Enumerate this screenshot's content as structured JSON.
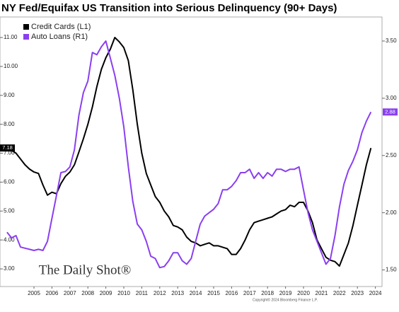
{
  "chart_data": {
    "type": "line",
    "title": "NY Fed/Equifax US Transition into Serious Delinquency (90+ Days)",
    "watermark": "The Daily Shot®",
    "copyright": "Copyright© 2024 Bloomberg Finance L.P.",
    "x": [
      2004,
      2004.25,
      2004.5,
      2004.75,
      2005,
      2005.25,
      2005.5,
      2005.75,
      2006,
      2006.25,
      2006.5,
      2006.75,
      2007,
      2007.25,
      2007.5,
      2007.75,
      2008,
      2008.25,
      2008.5,
      2008.75,
      2009,
      2009.25,
      2009.5,
      2009.75,
      2010,
      2010.25,
      2010.5,
      2010.75,
      2011,
      2011.25,
      2011.5,
      2011.75,
      2012,
      2012.25,
      2012.5,
      2012.75,
      2013,
      2013.25,
      2013.5,
      2013.75,
      2014,
      2014.25,
      2014.5,
      2014.75,
      2015,
      2015.25,
      2015.5,
      2015.75,
      2016,
      2016.25,
      2016.5,
      2016.75,
      2017,
      2017.25,
      2017.5,
      2017.75,
      2018,
      2018.25,
      2018.5,
      2018.75,
      2019,
      2019.25,
      2019.5,
      2019.75,
      2020,
      2020.25,
      2020.5,
      2020.75,
      2021,
      2021.25,
      2021.5,
      2021.75,
      2022,
      2022.25,
      2022.5,
      2022.75,
      2023,
      2023.25,
      2023.5,
      2023.75,
      2024,
      2024.25
    ],
    "xlim": [
      2003.61,
      2024.87
    ],
    "xticks": [
      {
        "value": 2005.5,
        "label": "2005"
      },
      {
        "value": 2006.5,
        "label": "2006"
      },
      {
        "value": 2007.5,
        "label": "2007"
      },
      {
        "value": 2008.5,
        "label": "2008"
      },
      {
        "value": 2009.5,
        "label": "2009"
      },
      {
        "value": 2010.5,
        "label": "2010"
      },
      {
        "value": 2011.5,
        "label": "2011"
      },
      {
        "value": 2012.5,
        "label": "2012"
      },
      {
        "value": 2013.5,
        "label": "2013"
      },
      {
        "value": 2014.5,
        "label": "2014"
      },
      {
        "value": 2015.5,
        "label": "2015"
      },
      {
        "value": 2016.5,
        "label": "2016"
      },
      {
        "value": 2017.5,
        "label": "2017"
      },
      {
        "value": 2018.5,
        "label": "2018"
      },
      {
        "value": 2019.5,
        "label": "2019"
      },
      {
        "value": 2020.5,
        "label": "2020"
      },
      {
        "value": 2021.5,
        "label": "2021"
      },
      {
        "value": 2022.5,
        "label": "2022"
      },
      {
        "value": 2023.5,
        "label": "2023"
      },
      {
        "value": 2024.5,
        "label": "2024"
      }
    ],
    "ylim": [
      2.39,
      11.71
    ],
    "yticks": [
      {
        "value": 3,
        "label": "3.00"
      },
      {
        "value": 4,
        "label": "4.00"
      },
      {
        "value": 5,
        "label": "5.00"
      },
      {
        "value": 6,
        "label": "6.00"
      },
      {
        "value": 7,
        "label": "7.00"
      },
      {
        "value": 8,
        "label": "8.00"
      },
      {
        "value": 9,
        "label": "9.00"
      },
      {
        "value": 10,
        "label": "10.00"
      },
      {
        "value": 11,
        "label": "11.00"
      }
    ],
    "y2lim": [
      1.355,
      3.71
    ],
    "y2ticks": [
      {
        "value": 1.5,
        "label": "1.50"
      },
      {
        "value": 2,
        "label": "2.00"
      },
      {
        "value": 2.5,
        "label": "2.50"
      },
      {
        "value": 3,
        "label": "3.00"
      },
      {
        "value": 3.5,
        "label": "3.50"
      }
    ],
    "legend": "top-left",
    "series": [
      {
        "name": "Credit Cards (L1)",
        "color": "#000000",
        "axis": "y",
        "values": [
          7.25,
          7.1,
          7.0,
          6.8,
          6.6,
          6.45,
          6.35,
          6.3,
          5.9,
          5.55,
          5.65,
          5.6,
          5.95,
          6.2,
          6.35,
          6.6,
          7.04,
          7.5,
          8.0,
          8.6,
          9.3,
          9.9,
          10.3,
          10.6,
          11.0,
          10.85,
          10.65,
          10.2,
          9.2,
          8.0,
          7.0,
          6.3,
          5.9,
          5.5,
          5.3,
          5.0,
          4.8,
          4.5,
          4.45,
          4.35,
          4.1,
          3.95,
          3.9,
          3.8,
          3.85,
          3.9,
          3.8,
          3.8,
          3.75,
          3.7,
          3.5,
          3.5,
          3.7,
          4.0,
          4.35,
          4.6,
          4.65,
          4.7,
          4.75,
          4.8,
          4.9,
          5.0,
          5.05,
          5.2,
          5.15,
          5.3,
          5.3,
          5.0,
          4.6,
          4.0,
          3.7,
          3.4,
          3.3,
          3.25,
          3.1,
          3.5,
          3.9,
          4.5,
          5.2,
          5.9,
          6.6,
          7.18
        ]
      },
      {
        "name": "Auto Loans (R1)",
        "color": "#8a3ff0",
        "axis": "y2",
        "values": [
          1.83,
          1.78,
          1.8,
          1.7,
          1.69,
          1.68,
          1.67,
          1.68,
          1.67,
          1.75,
          1.95,
          2.15,
          2.35,
          2.36,
          2.4,
          2.55,
          2.85,
          3.05,
          3.15,
          3.4,
          3.38,
          3.45,
          3.5,
          3.35,
          3.2,
          3.0,
          2.75,
          2.4,
          2.1,
          1.9,
          1.85,
          1.75,
          1.62,
          1.6,
          1.52,
          1.53,
          1.58,
          1.65,
          1.65,
          1.58,
          1.55,
          1.6,
          1.75,
          1.9,
          1.97,
          2.0,
          2.03,
          2.08,
          2.2,
          2.2,
          2.23,
          2.28,
          2.35,
          2.35,
          2.38,
          2.3,
          2.35,
          2.3,
          2.35,
          2.32,
          2.38,
          2.38,
          2.36,
          2.38,
          2.38,
          2.4,
          2.2,
          2.0,
          1.85,
          1.75,
          1.65,
          1.55,
          1.6,
          1.8,
          2.05,
          2.25,
          2.37,
          2.45,
          2.55,
          2.7,
          2.8,
          2.88
        ]
      }
    ]
  }
}
